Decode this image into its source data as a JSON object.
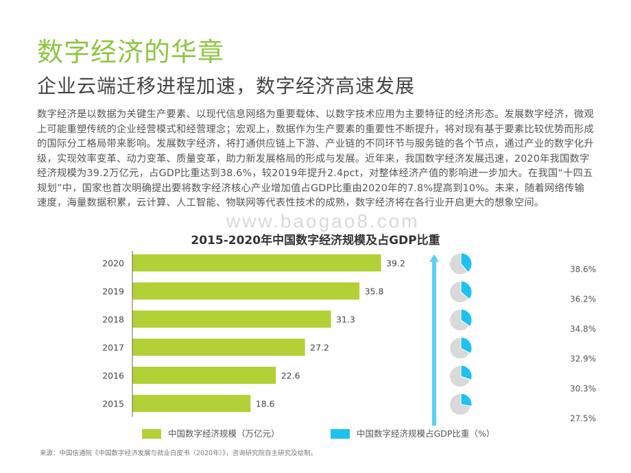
{
  "header": {
    "title": "数字经济的华章",
    "subtitle": "企业云端迁移进程加速，数字经济高速发展"
  },
  "body_text": "数字经济是以数据为关键生产要素、以现代信息网络为重要载体、以数字技术应用为主要特征的经济形态。发展数字经济，微观上可能重塑传统的企业经营模式和经营理念；宏观上，数据作为生产要素的重要性不断提升，将对现有基于要素比较优势而形成的国际分工格局带来影响。发展数字经济，将打通供应链上下游、产业链的不同环节与服务链的各个节点，通过产业的数字化升级，实现效率变革、动力变革、质量变革，助力新发展格局的形成与发展。近年来，我国数字经济发展迅速，2020年我国数字经济规模为39.2万亿元，占GDP比重达到38.6%，较2019年提升2.4pct，对整体经济产值的影响进一步加大。在我国“十四五规划”中，国家也首次明确提出要将数字经济核心产业增加值占GDP比重由2020年的7.8%提高到10%。未来，随着网络传输速度，海量数据积累，云计算、人工智能、物联网等代表性技术的成熟，数字经济将在各行业开启更大的想象空间。",
  "watermark": "www.baogao8.com",
  "source": "来源：中国信通院《中国数字经济发展与就业白皮书（2020年）》，咨询研究院自主研究及绘制。",
  "colors": {
    "title_green": "#8dc63f",
    "bar_green": "#b1d136",
    "pie_blue": "#1ec2f0",
    "pie_gray": "#d9d9d9",
    "arrow_blue": "#5dd0f5"
  },
  "chart_data": {
    "type": "bar",
    "orientation": "horizontal",
    "title": "2015-2020年中国数字经济规模及占GDP比重",
    "categories": [
      "2020",
      "2019",
      "2018",
      "2017",
      "2016",
      "2015"
    ],
    "series": [
      {
        "name": "中国数字经济规模（万亿元）",
        "type": "bar",
        "values": [
          39.2,
          35.8,
          31.3,
          27.2,
          22.6,
          18.6
        ],
        "labels": [
          "39.2",
          "35.8",
          "31.3",
          "27.2",
          "22.6",
          "18.6"
        ]
      },
      {
        "name": "中国数字经济规模占GDP比重（%）",
        "type": "pie",
        "values": [
          38.6,
          36.2,
          34.8,
          32.9,
          30.3,
          27.5
        ],
        "labels": [
          "38.6%",
          "36.2%",
          "34.8%",
          "32.9%",
          "30.3%",
          "27.5%"
        ]
      }
    ],
    "xlim": [
      0,
      40
    ],
    "grid": false,
    "legend_position": "bottom"
  }
}
